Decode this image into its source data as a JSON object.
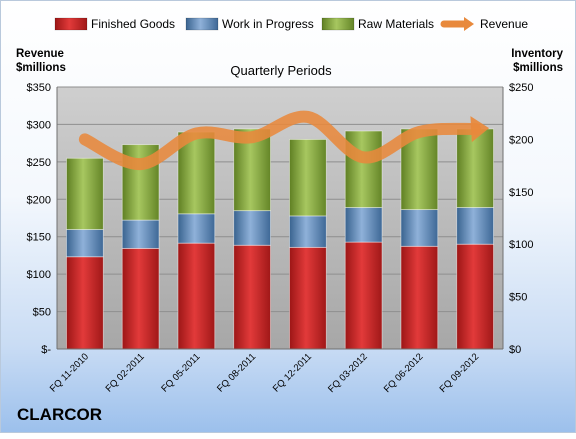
{
  "company": "CLARCOR",
  "chart_data": {
    "type": "bar",
    "stacked": true,
    "title": "Quarterly Periods",
    "left_axis_label_line1": "Revenue",
    "left_axis_label_line2": "$millions",
    "right_axis_label_line1": "Inventory",
    "right_axis_label_line2": "$millions",
    "left_ylim": [
      0,
      350
    ],
    "right_ylim": [
      0,
      250
    ],
    "left_ticks": [
      "$-",
      "$50",
      "$100",
      "$150",
      "$200",
      "$250",
      "$300",
      "$350"
    ],
    "right_ticks": [
      "$0",
      "$50",
      "$100",
      "$150",
      "$200",
      "$250"
    ],
    "categories": [
      "FQ 11-2010",
      "FQ 02-2011",
      "FQ 05-2011",
      "FQ 08-2011",
      "FQ 12-2011",
      "FQ 03-2012",
      "FQ 06-2012",
      "FQ 09-2012"
    ],
    "legend_position": "top",
    "grid": true,
    "series": [
      {
        "name": "Finished Goods",
        "axis": "right",
        "color": "#cc2222",
        "values": [
          88,
          96,
          101,
          99,
          97,
          102,
          98,
          100
        ]
      },
      {
        "name": "Work in Progress",
        "axis": "right",
        "color": "#4f81bd",
        "values": [
          26,
          27,
          28,
          33,
          30,
          33,
          35,
          35
        ]
      },
      {
        "name": "Raw Materials",
        "axis": "right",
        "color": "#8db03c",
        "values": [
          68,
          72,
          78,
          78,
          73,
          73,
          77,
          75
        ]
      },
      {
        "name": "Revenue",
        "axis": "left",
        "type": "line",
        "color": "#e8893c",
        "values": [
          280,
          247,
          288,
          283,
          310,
          256,
          290,
          294
        ]
      }
    ]
  }
}
